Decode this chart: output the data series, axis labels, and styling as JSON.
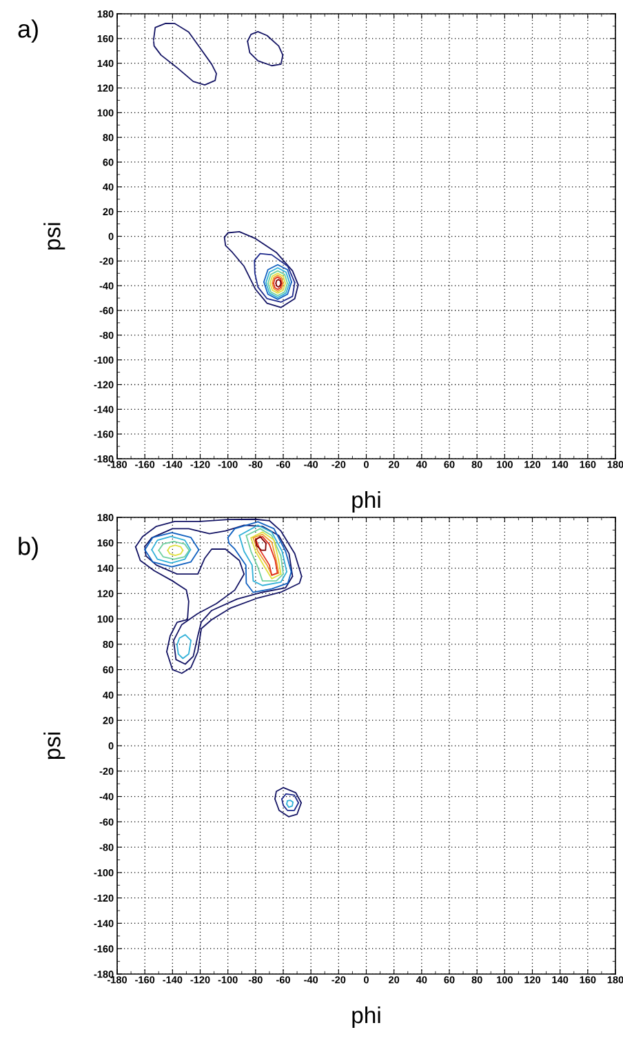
{
  "chart_data": [
    {
      "type": "line",
      "xlabel": "phi",
      "ylabel": "psi",
      "annotations": [
        "a)"
      ],
      "grid": true,
      "line_style": "solid",
      "marker": "none",
      "xlim": [
        -180,
        180
      ],
      "ylim": [
        -180,
        180
      ],
      "xticks": [
        -180,
        -160,
        -140,
        -120,
        -100,
        -80,
        -60,
        -40,
        -20,
        0,
        20,
        40,
        60,
        80,
        100,
        120,
        140,
        160,
        180
      ],
      "yticks": [
        -180,
        -160,
        -140,
        -120,
        -100,
        -80,
        -60,
        -40,
        -20,
        0,
        20,
        40,
        60,
        80,
        100,
        120,
        140,
        160,
        180
      ],
      "series": [
        {
          "color": "#141464",
          "x": [
            -153.7,
            -152.5,
            -145,
            -138.3,
            -128.3,
            -120,
            -111.7,
            -108.3,
            -109.2,
            -116.7,
            -125,
            -136.7,
            -148.3,
            -153.3,
            -153.6
          ],
          "values": [
            158.7,
            168.9,
            172.3,
            172.1,
            165.2,
            152.2,
            139.2,
            131.7,
            126.1,
            122.4,
            125.2,
            136.4,
            146.6,
            154,
            157.6
          ]
        },
        {
          "color": "#141464",
          "x": [
            -85.8,
            -83.3,
            -78.3,
            -71.7,
            -63.3,
            -60.3
          ],
          "values": [
            157.8,
            163.3,
            165.6,
            162.4,
            154,
            146.6
          ]
        },
        {
          "color": "#141464",
          "x": [
            -85.8,
            -84.2,
            -78.3,
            -68.3,
            -61.7,
            -60.3
          ],
          "values": [
            157.8,
            148.5,
            142,
            138,
            139.2,
            146.6
          ]
        },
        {
          "color": "#141464",
          "x": [
            -102.5,
            -100,
            -91.7,
            -80,
            -65,
            -53.3,
            -49.2
          ],
          "values": [
            -0.9,
            2.8,
            3.7,
            -1.9,
            -13.1,
            -28,
            -39.3
          ]
        },
        {
          "color": "#141464",
          "x": [
            -102.5,
            -101.7,
            -96.7,
            -88.3,
            -80,
            -71.7,
            -61.7,
            -51.7,
            -49.2
          ],
          "values": [
            -0.9,
            -7.5,
            -13.1,
            -24.3,
            -43,
            -54.2,
            -57.6,
            -50.5,
            -39.3
          ]
        },
        {
          "color": "#1e2a8c",
          "x": [
            -80.8,
            -76.7,
            -68.3,
            -56.7,
            -51.7
          ],
          "values": [
            -19.6,
            -14,
            -15,
            -24.3,
            -37.4
          ]
        },
        {
          "color": "#1e2a8c",
          "x": [
            -80.8,
            -80.5,
            -78.3,
            -71.7,
            -61.7,
            -53.3,
            -51.7
          ],
          "values": [
            -19.6,
            -29.9,
            -41.1,
            -50.5,
            -53.3,
            -48.6,
            -37.4
          ]
        },
        {
          "color": "#1060c0",
          "x": [
            -74,
            -71.1,
            -64,
            -56.9,
            -54
          ],
          "values": [
            -37,
            -27.1,
            -23,
            -27.1,
            -37
          ]
        },
        {
          "color": "#1060c0",
          "x": [
            -74,
            -71.1,
            -64,
            -56.9,
            -54
          ],
          "values": [
            -37,
            -46.9,
            -51,
            -46.9,
            -37
          ]
        },
        {
          "color": "#30b0d8",
          "x": [
            -72.5,
            -70,
            -64,
            -58,
            -55.5
          ],
          "values": [
            -37.5,
            -29,
            -25.5,
            -29,
            -37.5
          ]
        },
        {
          "color": "#30b0d8",
          "x": [
            -72.5,
            -70,
            -64,
            -58,
            -55.5
          ],
          "values": [
            -37.5,
            -46,
            -49.5,
            -46,
            -37.5
          ]
        },
        {
          "color": "#70d0a0",
          "x": [
            -71,
            -69,
            -64,
            -59,
            -57
          ],
          "values": [
            -38,
            -30.9,
            -28,
            -30.9,
            -38
          ]
        },
        {
          "color": "#70d0a0",
          "x": [
            -71,
            -69,
            -64,
            -59,
            -57
          ],
          "values": [
            -38,
            -45.1,
            -48,
            -45.1,
            -38
          ]
        },
        {
          "color": "#e0e040",
          "x": [
            -69.5,
            -67.9,
            -64,
            -60.1,
            -58.5
          ],
          "values": [
            -38,
            -32.3,
            -30,
            -32.3,
            -38
          ]
        },
        {
          "color": "#e0e040",
          "x": [
            -69.5,
            -67.9,
            -64,
            -60.1,
            -58.5
          ],
          "values": [
            -38,
            -43.7,
            -46,
            -43.7,
            -38
          ]
        },
        {
          "color": "#f0a030",
          "x": [
            -68,
            -66.8,
            -64,
            -61.2,
            -60
          ],
          "values": [
            -38,
            -33.4,
            -31.5,
            -33.4,
            -38
          ]
        },
        {
          "color": "#f0a030",
          "x": [
            -68,
            -66.8,
            -64,
            -61.2,
            -60
          ],
          "values": [
            -38,
            -42.6,
            -44.5,
            -42.6,
            -38
          ]
        },
        {
          "color": "#e03020",
          "x": [
            -67,
            -66.1,
            -64,
            -61.9,
            -61
          ],
          "values": [
            -38,
            -34.4,
            -33,
            -34.4,
            -38
          ]
        },
        {
          "color": "#e03020",
          "x": [
            -67,
            -66.1,
            -64,
            -61.9,
            -61
          ],
          "values": [
            -38,
            -41.6,
            -43,
            -41.6,
            -38
          ]
        },
        {
          "color": "#800000",
          "x": [
            -65.3,
            -64.8,
            -63.5,
            -62.2,
            -61.7
          ],
          "values": [
            -38,
            -35.9,
            -35,
            -35.9,
            -38
          ]
        },
        {
          "color": "#800000",
          "x": [
            -65.3,
            -64.8,
            -63.5,
            -62.2,
            -61.7
          ],
          "values": [
            -38,
            -40.1,
            -41,
            -40.1,
            -38
          ]
        }
      ]
    },
    {
      "type": "line",
      "xlabel": "phi",
      "ylabel": "psi",
      "annotations": [
        "b)"
      ],
      "grid": true,
      "line_style": "solid",
      "marker": "none",
      "xlim": [
        -180,
        180
      ],
      "ylim": [
        -180,
        180
      ],
      "xticks": [
        -180,
        -160,
        -140,
        -120,
        -100,
        -80,
        -60,
        -40,
        -20,
        0,
        20,
        40,
        60,
        80,
        100,
        120,
        140,
        160,
        180
      ],
      "yticks": [
        -180,
        -160,
        -140,
        -120,
        -100,
        -80,
        -60,
        -40,
        -20,
        0,
        20,
        40,
        60,
        80,
        100,
        120,
        140,
        160,
        180
      ],
      "series": [
        {
          "color": "#141464",
          "x": [
            -166.7,
            -161.7,
            -151.7,
            -138.3,
            -120,
            -100,
            -80,
            -70,
            -61.7,
            -51.7,
            -46.7
          ],
          "values": [
            156.8,
            164.8,
            172.9,
            176.8,
            176.8,
            178.3,
            178.5,
            177.4,
            169.3,
            151.4,
            133.5
          ]
        },
        {
          "color": "#141464",
          "x": [
            -144.2,
            -140,
            -133.3,
            -126.7,
            -121.7,
            -120,
            -119.2,
            -111.7,
            -98.3,
            -78.3,
            -61.7,
            -48.3,
            -46.7
          ],
          "values": [
            74.1,
            60,
            57.1,
            61.6,
            74.1,
            86.6,
            92.3,
            99.4,
            108.4,
            116.5,
            121,
            128.1,
            133.5
          ]
        },
        {
          "color": "#141464",
          "x": [
            -144.2,
            -141.7,
            -136.7,
            -129.2,
            -128.3,
            -130,
            -140,
            -153.3,
            -163.3,
            -166.7
          ],
          "values": [
            74.1,
            86.6,
            97.3,
            99.4,
            113.8,
            122.7,
            129.9,
            138,
            146,
            156.8
          ]
        },
        {
          "color": "#141464",
          "x": [
            -160,
            -155,
            -140,
            -128.3,
            -113.3,
            -101.7,
            -88.3,
            -75,
            -63.3,
            -55.8,
            -53.3
          ],
          "values": [
            157,
            163.9,
            171.1,
            171.1,
            167.2,
            169.3,
            173.8,
            172.9,
            165.7,
            151.4,
            133.5
          ]
        },
        {
          "color": "#141464",
          "x": [
            -139.2,
            -137.5,
            -130.8,
            -125,
            -121.7,
            -119.2,
            -111.7,
            -93.3,
            -75,
            -58.3,
            -53.3
          ],
          "values": [
            83,
            67.9,
            64.3,
            70.5,
            86.6,
            97.6,
            106.6,
            115.6,
            121,
            124.5,
            133.5
          ]
        },
        {
          "color": "#141464",
          "x": [
            -139.2,
            -133.3,
            -122,
            -108.3,
            -95,
            -88.3
          ],
          "values": [
            83,
            95.5,
            104,
            112,
            122.7,
            135.3
          ]
        },
        {
          "color": "#141464",
          "x": [
            -160,
            -159.2,
            -151.7,
            -136.7,
            -128.3,
            -121.7,
            -116.7,
            -111.7,
            -101.7,
            -91.7,
            -88.3
          ],
          "values": [
            157,
            149.6,
            142.4,
            135.3,
            135.3,
            135.3,
            147.8,
            155,
            155,
            146,
            135.3
          ]
        },
        {
          "color": "#1060c0",
          "x": [
            -160,
            -154.3,
            -140.5,
            -126.7,
            -121
          ],
          "values": [
            154.5,
            164.1,
            168,
            164.1,
            154.5
          ]
        },
        {
          "color": "#1060c0",
          "x": [
            -160,
            -154.3,
            -140.5,
            -126.7,
            -121
          ],
          "values": [
            154.5,
            144.9,
            141,
            144.9,
            154.5
          ]
        },
        {
          "color": "#30b0d8",
          "x": [
            -155,
            -150.9,
            -141,
            -131.1,
            -127
          ],
          "values": [
            154.5,
            162,
            165,
            162,
            154.5
          ]
        },
        {
          "color": "#30b0d8",
          "x": [
            -155,
            -150.9,
            -141,
            -131.1,
            -127
          ],
          "values": [
            154.5,
            147,
            144,
            147,
            154.5
          ]
        },
        {
          "color": "#70d0a0",
          "x": [
            -150,
            -146.8,
            -139,
            -131.2,
            -128
          ],
          "values": [
            154,
            159,
            161,
            159,
            154
          ]
        },
        {
          "color": "#70d0a0",
          "x": [
            -150,
            -146.8,
            -139,
            -131.2,
            -128
          ],
          "values": [
            154,
            149,
            147,
            149,
            154
          ]
        },
        {
          "color": "#e0e040",
          "x": [
            -143.5,
            -141.9,
            -138,
            -134.1,
            -132.5
          ],
          "values": [
            154,
            156.8,
            158,
            156.8,
            154
          ]
        },
        {
          "color": "#e0e040",
          "x": [
            -143.5,
            -141.9,
            -138,
            -134.1,
            -132.5
          ],
          "values": [
            154,
            151.2,
            150,
            151.2,
            154
          ]
        },
        {
          "color": "#1060c0",
          "x": [
            -100,
            -95,
            -78.3,
            -66.7,
            -58.3,
            -54.2
          ],
          "values": [
            164,
            171.1,
            176.5,
            171.1,
            153.2,
            137.1
          ]
        },
        {
          "color": "#1060c0",
          "x": [
            -100,
            -99.2,
            -95,
            -87,
            -86.7,
            -81.7,
            -68.3,
            -56.7,
            -54.2
          ],
          "values": [
            164,
            159.5,
            155,
            142.4,
            128.1,
            120.9,
            123.6,
            128.1,
            137.1
          ]
        },
        {
          "color": "#30b0d8",
          "x": [
            -91.7,
            -78.3,
            -68.3,
            -60.8,
            -57.5
          ],
          "values": [
            165.7,
            173.8,
            168.4,
            153.2,
            137.1
          ]
        },
        {
          "color": "#30b0d8",
          "x": [
            -91.7,
            -88.3,
            -82.5,
            -81.7,
            -75,
            -61.7,
            -57.5
          ],
          "values": [
            165.7,
            153.2,
            142.4,
            129.9,
            126.3,
            129,
            137.1
          ]
        },
        {
          "color": "#70d0a0",
          "x": [
            -86.7,
            -76.7,
            -68.3,
            -61.7,
            -60
          ],
          "values": [
            165.7,
            171.1,
            165.7,
            149.6,
            135.3
          ]
        },
        {
          "color": "#70d0a0",
          "x": [
            -86.7,
            -83.3,
            -78.3,
            -75,
            -65,
            -60
          ],
          "values": [
            165.7,
            153.2,
            140.6,
            129.9,
            129.9,
            135.3
          ]
        },
        {
          "color": "#e0e040",
          "x": [
            -83.3,
            -75,
            -66.7,
            -63.3,
            -61.7
          ],
          "values": [
            163.9,
            168.4,
            162.2,
            146,
            135.3
          ]
        },
        {
          "color": "#e0e040",
          "x": [
            -83.3,
            -80,
            -73.3,
            -68.3,
            -61.7
          ],
          "values": [
            163.9,
            153.2,
            140.6,
            131.7,
            135.3
          ]
        },
        {
          "color": "#f0a030",
          "x": [
            -81.7,
            -75,
            -68.3,
            -65,
            -63.3
          ],
          "values": [
            163.9,
            166.6,
            160.4,
            146,
            136.2
          ]
        },
        {
          "color": "#f0a030",
          "x": [
            -81.7,
            -78.3,
            -71.7,
            -68.3,
            -63.3
          ],
          "values": [
            163.9,
            153.2,
            142.4,
            134.4,
            136.2
          ]
        },
        {
          "color": "#e03020",
          "x": [
            -80,
            -75,
            -70,
            -65.8,
            -64.2
          ],
          "values": [
            163,
            164.8,
            158.6,
            146,
            136.2
          ]
        },
        {
          "color": "#e03020",
          "x": [
            -80,
            -76.7,
            -70,
            -68.3,
            -64.2
          ],
          "values": [
            163,
            154.1,
            142.4,
            134.4,
            136.2
          ]
        },
        {
          "color": "#800000",
          "x": [
            -80,
            -76.7,
            -72.5
          ],
          "values": [
            162.2,
            164.8,
            159.5
          ]
        },
        {
          "color": "#800000",
          "x": [
            -80,
            -79.2,
            -75.8,
            -72.8,
            -72.5
          ],
          "values": [
            162.2,
            157.7,
            154.1,
            154.1,
            159.5
          ]
        },
        {
          "color": "#30b0d8",
          "x": [
            -136.7,
            -135,
            -130.8,
            -126.7
          ],
          "values": [
            79.5,
            84.8,
            87.5,
            83
          ]
        },
        {
          "color": "#30b0d8",
          "x": [
            -136.7,
            -135.8,
            -132.5,
            -128.3,
            -126.7
          ],
          "values": [
            79.5,
            72.3,
            68.8,
            72.3,
            83
          ]
        },
        {
          "color": "#141464",
          "x": [
            -66,
            -65,
            -60,
            -51,
            -47
          ],
          "values": [
            -42,
            -36,
            -33,
            -37,
            -45
          ]
        },
        {
          "color": "#141464",
          "x": [
            -66,
            -63,
            -56,
            -50,
            -47
          ],
          "values": [
            -42,
            -51,
            -56,
            -54,
            -45
          ]
        },
        {
          "color": "#1e2a8c",
          "x": [
            -61,
            -58,
            -52,
            -49
          ],
          "values": [
            -42,
            -38,
            -39,
            -45
          ]
        },
        {
          "color": "#1e2a8c",
          "x": [
            -61,
            -60,
            -57,
            -52,
            -49
          ],
          "values": [
            -42,
            -47,
            -51,
            -51,
            -45
          ]
        },
        {
          "color": "#30b0d8",
          "x": [
            -57.5,
            -57,
            -55,
            -53
          ],
          "values": [
            -46,
            -43.5,
            -43,
            -44.5
          ]
        },
        {
          "color": "#30b0d8",
          "x": [
            -57.5,
            -56,
            -53.5,
            -53
          ],
          "values": [
            -46,
            -48.5,
            -47.5,
            -44.5
          ]
        }
      ]
    }
  ]
}
